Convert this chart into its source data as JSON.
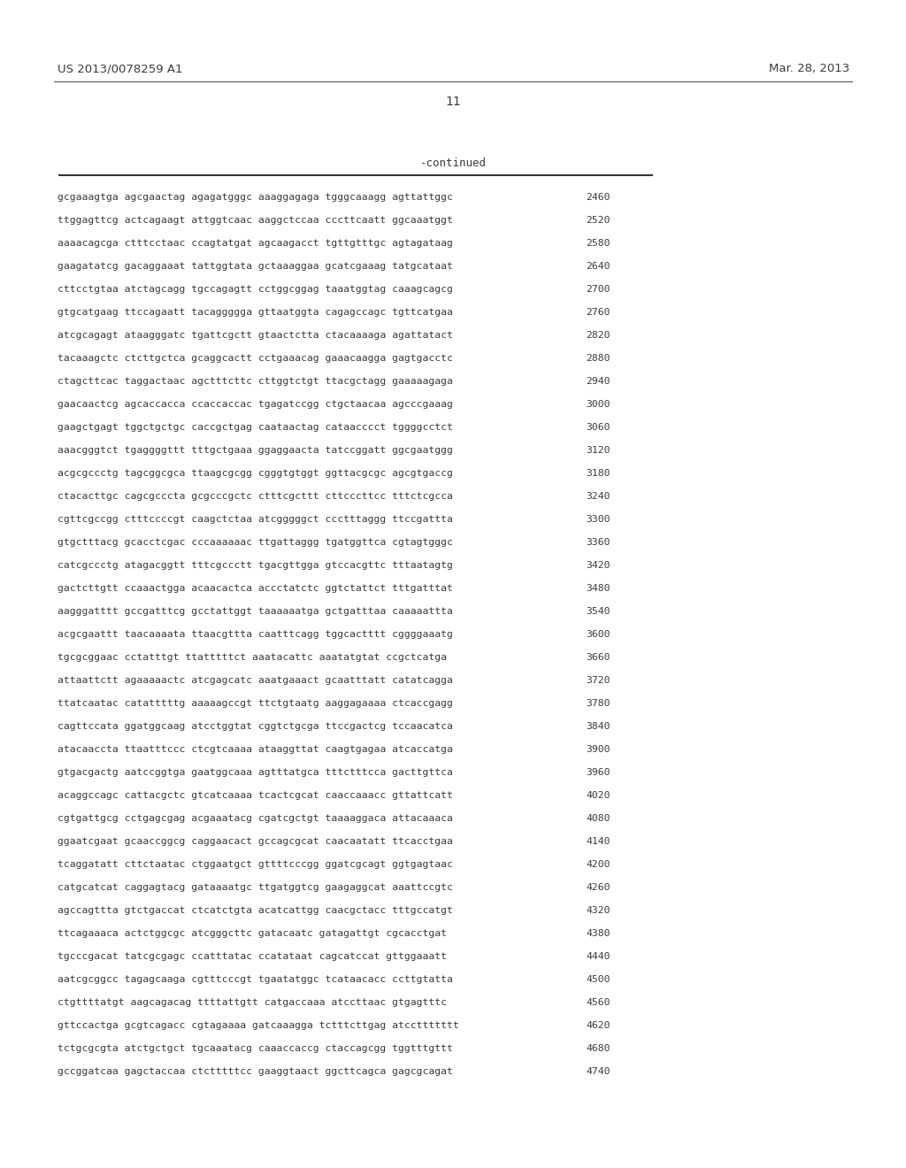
{
  "header_left": "US 2013/0078259 A1",
  "header_right": "Mar. 28, 2013",
  "page_number": "11",
  "continued_label": "-continued",
  "bg_color": "#ffffff",
  "text_color": "#3a3a3a",
  "sequences": [
    [
      "gcgaaagtga agcgaactag agagatgggc aaaggagaga tgggcaaagg agttattggc",
      "2460"
    ],
    [
      "ttggagttcg actcagaagt attggtcaac aaggctccaa cccttcaatt ggcaaatggt",
      "2520"
    ],
    [
      "aaaacagcga ctttcctaac ccagtatgat agcaagacct tgttgtttgc agtagataag",
      "2580"
    ],
    [
      "gaagatatcg gacaggaaat tattggtata gctaaaggaa gcatcgaaag tatgcataat",
      "2640"
    ],
    [
      "cttcctgtaa atctagcagg tgccagagtt cctggcggag taaatggtag caaagcagcg",
      "2700"
    ],
    [
      "gtgcatgaag ttccagaatt tacaggggga gttaatggta cagagccagc tgttcatgaa",
      "2760"
    ],
    [
      "atcgcagagt ataagggatc tgattcgctt gtaactctta ctacaaaaga agattatact",
      "2820"
    ],
    [
      "tacaaagctc ctcttgctca gcaggcactt cctgaaacag gaaacaagga gagtgacctc",
      "2880"
    ],
    [
      "ctagcttcac taggactaac agctttcttc cttggtctgt ttacgctagg gaaaaagaga",
      "2940"
    ],
    [
      "gaacaactcg agcaccacca ccaccaccac tgagatccgg ctgctaacaa agcccgaaag",
      "3000"
    ],
    [
      "gaagctgagt tggctgctgc caccgctgag caataactag cataacccct tggggcctct",
      "3060"
    ],
    [
      "aaacgggtct tgaggggttt tttgctgaaa ggaggaacta tatccggatt ggcgaatggg",
      "3120"
    ],
    [
      "acgcgccctg tagcggcgca ttaagcgcgg cgggtgtggt ggttacgcgc agcgtgaccg",
      "3180"
    ],
    [
      "ctacacttgc cagcgcccta gcgcccgctc ctttcgcttt cttcccttcc tttctcgcca",
      "3240"
    ],
    [
      "cgttcgccgg ctttccccgt caagctctaa atcgggggct ccctttaggg ttccgattta",
      "3300"
    ],
    [
      "gtgctttacg gcacctcgac cccaaaaaac ttgattaggg tgatggttca cgtagtgggc",
      "3360"
    ],
    [
      "catcgccctg atagacggtt tttcgccctt tgacgttgga gtccacgttc tttaatagtg",
      "3420"
    ],
    [
      "gactcttgtt ccaaactgga acaacactca accctatctc ggtctattct tttgatttat",
      "3480"
    ],
    [
      "aagggatttt gccgatttcg gcctattggt taaaaaatga gctgatttaa caaaaattta",
      "3540"
    ],
    [
      "acgcgaattt taacaaaata ttaacgttta caatttcagg tggcactttt cggggaaatg",
      "3600"
    ],
    [
      "tgcgcggaac cctatttgt ttatttttct aaatacattc aaatatgtat ccgctcatga",
      "3660"
    ],
    [
      "attaattctt agaaaaactc atcgagcatc aaatgaaact gcaatttatt catatcagga",
      "3720"
    ],
    [
      "ttatcaatac catatttttg aaaaagccgt ttctgtaatg aaggagaaaa ctcaccgagg",
      "3780"
    ],
    [
      "cagttccata ggatggcaag atcctggtat cggtctgcga ttccgactcg tccaacatca",
      "3840"
    ],
    [
      "atacaaccta ttaatttccc ctcgtcaaaa ataaggttat caagtgagaa atcaccatga",
      "3900"
    ],
    [
      "gtgacgactg aatccggtga gaatggcaaa agtttatgca tttctttcca gacttgttca",
      "3960"
    ],
    [
      "acaggccagc cattacgctc gtcatcaaaa tcactcgcat caaccaaacc gttattcatt",
      "4020"
    ],
    [
      "cgtgattgcg cctgagcgag acgaaatacg cgatcgctgt taaaaggaca attacaaaca",
      "4080"
    ],
    [
      "ggaatcgaat gcaaccggcg caggaacact gccagcgcat caacaatatt ttcacctgaa",
      "4140"
    ],
    [
      "tcaggatatt cttctaatac ctggaatgct gttttcccgg ggatcgcagt ggtgagtaac",
      "4200"
    ],
    [
      "catgcatcat caggagtacg gataaaatgc ttgatggtcg gaagaggcat aaattccgtc",
      "4260"
    ],
    [
      "agccagttta gtctgaccat ctcatctgta acatcattgg caacgctacc tttgccatgt",
      "4320"
    ],
    [
      "ttcagaaaca actctggcgc atcgggcttc gatacaatc gatagattgt cgcacctgat",
      "4380"
    ],
    [
      "tgcccgacat tatcgcgagc ccatttatac ccatataat cagcatccat gttggaaatt",
      "4440"
    ],
    [
      "aatcgcggcc tagagcaaga cgtttcccgt tgaatatggc tcataacacc ccttgtatta",
      "4500"
    ],
    [
      "ctgttttatgt aagcagacag ttttattgtt catgaccaaa atccttaac gtgagtttc",
      "4560"
    ],
    [
      "gttccactga gcgtcagacc cgtagaaaa gatcaaagga tctttcttgag atccttttttt",
      "4620"
    ],
    [
      "tctgcgcgta atctgctgct tgcaaatacg caaaccaccg ctaccagcgg tggtttgttt",
      "4680"
    ],
    [
      "gccggatcaa gagctaccaa ctctttttcc gaaggtaact ggcttcagca gagcgcagat",
      "4740"
    ]
  ]
}
